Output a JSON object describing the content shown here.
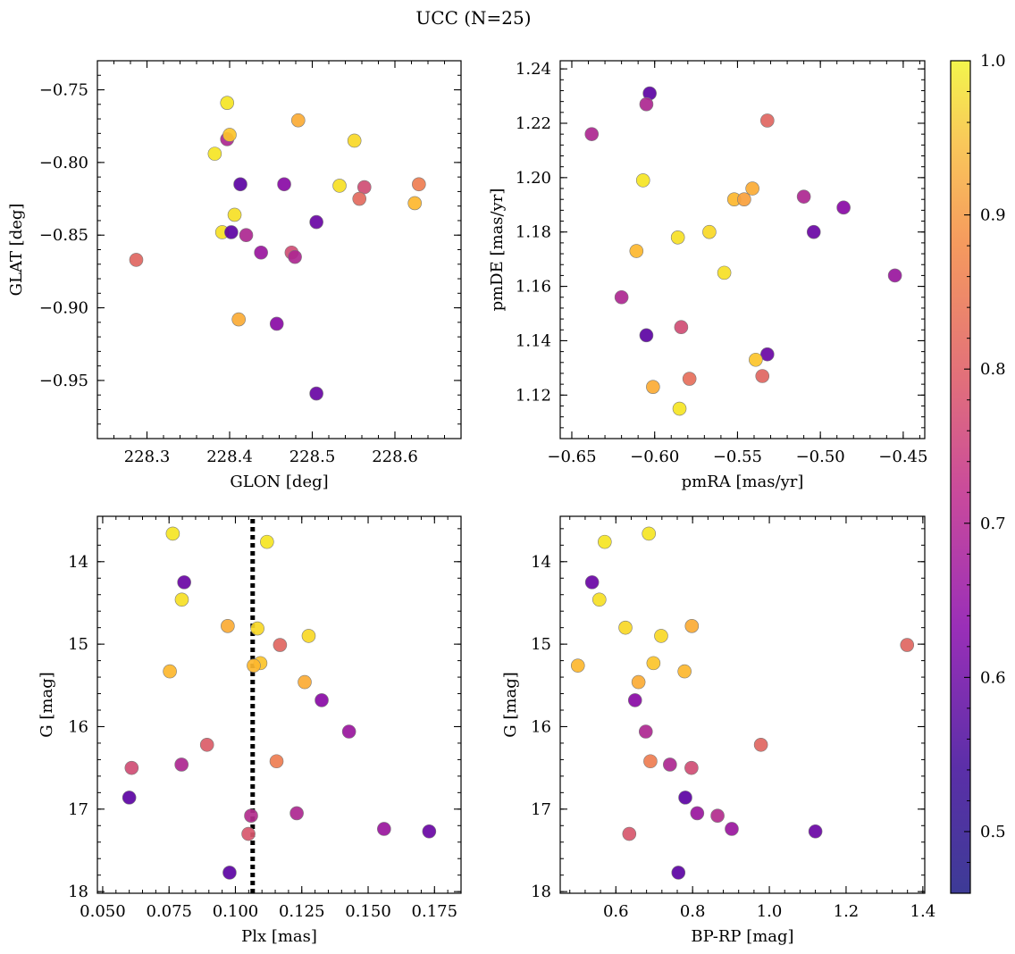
{
  "figure": {
    "title": "UCC (N=25)",
    "colorbar": {
      "range": [
        0.46,
        1.0
      ],
      "ticks": [
        0.5,
        0.6,
        0.7,
        0.8,
        0.9,
        1.0
      ],
      "tick_labels": [
        "0.5",
        "0.6",
        "0.7",
        "0.8",
        "0.9",
        "1.0"
      ],
      "colormap": "plasma"
    }
  },
  "chart_data": [
    {
      "type": "scatter",
      "xlabel": "GLON [deg]",
      "ylabel": "GLAT [deg]",
      "xlim": [
        228.24,
        228.68
      ],
      "ylim": [
        -0.99,
        -0.73
      ],
      "y_inverted": false,
      "xticks": [
        228.3,
        228.4,
        228.5,
        228.6
      ],
      "xtick_labels": [
        "228.3",
        "228.4",
        "228.5",
        "228.6"
      ],
      "yticks": [
        -0.75,
        -0.8,
        -0.85,
        -0.9,
        -0.95
      ],
      "ytick_labels": [
        "−0.75",
        "−0.80",
        "−0.85",
        "−0.90",
        "−0.95"
      ],
      "points": [
        {
          "x": 228.287,
          "y": -0.867,
          "c": 0.75
        },
        {
          "x": 228.397,
          "y": -0.759,
          "c": 0.97
        },
        {
          "x": 228.483,
          "y": -0.771,
          "c": 0.88
        },
        {
          "x": 228.397,
          "y": -0.784,
          "c": 0.62
        },
        {
          "x": 228.4,
          "y": -0.781,
          "c": 0.92
        },
        {
          "x": 228.551,
          "y": -0.785,
          "c": 0.95
        },
        {
          "x": 228.382,
          "y": -0.794,
          "c": 0.97
        },
        {
          "x": 228.413,
          "y": -0.815,
          "c": 0.48
        },
        {
          "x": 228.466,
          "y": -0.815,
          "c": 0.55
        },
        {
          "x": 228.533,
          "y": -0.816,
          "c": 0.96
        },
        {
          "x": 228.563,
          "y": -0.817,
          "c": 0.7
        },
        {
          "x": 228.629,
          "y": -0.815,
          "c": 0.8
        },
        {
          "x": 228.557,
          "y": -0.825,
          "c": 0.76
        },
        {
          "x": 228.624,
          "y": -0.828,
          "c": 0.9
        },
        {
          "x": 228.406,
          "y": -0.836,
          "c": 0.96
        },
        {
          "x": 228.505,
          "y": -0.841,
          "c": 0.5
        },
        {
          "x": 228.391,
          "y": -0.848,
          "c": 0.96
        },
        {
          "x": 228.402,
          "y": -0.848,
          "c": 0.48
        },
        {
          "x": 228.42,
          "y": -0.85,
          "c": 0.62
        },
        {
          "x": 228.438,
          "y": -0.862,
          "c": 0.58
        },
        {
          "x": 228.475,
          "y": -0.862,
          "c": 0.7
        },
        {
          "x": 228.479,
          "y": -0.865,
          "c": 0.62
        },
        {
          "x": 228.411,
          "y": -0.908,
          "c": 0.88
        },
        {
          "x": 228.457,
          "y": -0.911,
          "c": 0.55
        },
        {
          "x": 228.505,
          "y": -0.959,
          "c": 0.5
        }
      ]
    },
    {
      "type": "scatter",
      "xlabel": "pmRA [mas/yr]",
      "ylabel": "pmDE [mas/yr]",
      "xlim": [
        -0.657,
        -0.437
      ],
      "ylim": [
        1.104,
        1.243
      ],
      "y_inverted": false,
      "xticks": [
        -0.65,
        -0.6,
        -0.55,
        -0.5,
        -0.45
      ],
      "xtick_labels": [
        "−0.65",
        "−0.60",
        "−0.55",
        "−0.50",
        "−0.45"
      ],
      "yticks": [
        1.12,
        1.14,
        1.16,
        1.18,
        1.2,
        1.22,
        1.24
      ],
      "ytick_labels": [
        "1.12",
        "1.14",
        "1.16",
        "1.18",
        "1.20",
        "1.22",
        "1.24"
      ],
      "points": [
        {
          "x": -0.603,
          "y": 1.231,
          "c": 0.48
        },
        {
          "x": -0.605,
          "y": 1.227,
          "c": 0.62
        },
        {
          "x": -0.638,
          "y": 1.216,
          "c": 0.62
        },
        {
          "x": -0.532,
          "y": 1.221,
          "c": 0.75
        },
        {
          "x": -0.607,
          "y": 1.199,
          "c": 0.97
        },
        {
          "x": -0.541,
          "y": 1.196,
          "c": 0.88
        },
        {
          "x": -0.552,
          "y": 1.192,
          "c": 0.9
        },
        {
          "x": -0.546,
          "y": 1.192,
          "c": 0.86
        },
        {
          "x": -0.51,
          "y": 1.193,
          "c": 0.62
        },
        {
          "x": -0.486,
          "y": 1.189,
          "c": 0.55
        },
        {
          "x": -0.567,
          "y": 1.18,
          "c": 0.95
        },
        {
          "x": -0.586,
          "y": 1.178,
          "c": 0.96
        },
        {
          "x": -0.504,
          "y": 1.18,
          "c": 0.5
        },
        {
          "x": -0.611,
          "y": 1.173,
          "c": 0.9
        },
        {
          "x": -0.558,
          "y": 1.165,
          "c": 0.96
        },
        {
          "x": -0.455,
          "y": 1.164,
          "c": 0.58
        },
        {
          "x": -0.62,
          "y": 1.156,
          "c": 0.62
        },
        {
          "x": -0.584,
          "y": 1.145,
          "c": 0.7
        },
        {
          "x": -0.605,
          "y": 1.142,
          "c": 0.48
        },
        {
          "x": -0.532,
          "y": 1.135,
          "c": 0.5
        },
        {
          "x": -0.539,
          "y": 1.133,
          "c": 0.92
        },
        {
          "x": -0.535,
          "y": 1.127,
          "c": 0.75
        },
        {
          "x": -0.579,
          "y": 1.126,
          "c": 0.77
        },
        {
          "x": -0.601,
          "y": 1.123,
          "c": 0.88
        },
        {
          "x": -0.585,
          "y": 1.115,
          "c": 0.97
        }
      ]
    },
    {
      "type": "scatter",
      "xlabel": "Plx [mas]",
      "ylabel": "G [mag]",
      "xlim": [
        0.048,
        0.185
      ],
      "ylim": [
        18.02,
        13.45
      ],
      "y_inverted": true,
      "vline": 0.1065,
      "xticks": [
        0.05,
        0.075,
        0.1,
        0.125,
        0.15,
        0.175
      ],
      "xtick_labels": [
        "0.050",
        "0.075",
        "0.100",
        "0.125",
        "0.150",
        "0.175"
      ],
      "yticks": [
        14,
        15,
        16,
        17,
        18
      ],
      "ytick_labels": [
        "14",
        "15",
        "16",
        "17",
        "18"
      ],
      "points": [
        {
          "x": 0.0764,
          "y": 13.66,
          "c": 0.97
        },
        {
          "x": 0.1119,
          "y": 13.76,
          "c": 0.97
        },
        {
          "x": 0.0807,
          "y": 14.25,
          "c": 0.5
        },
        {
          "x": 0.0798,
          "y": 14.46,
          "c": 0.96
        },
        {
          "x": 0.0971,
          "y": 14.78,
          "c": 0.88
        },
        {
          "x": 0.1083,
          "y": 14.81,
          "c": 0.95
        },
        {
          "x": 0.1276,
          "y": 14.9,
          "c": 0.95
        },
        {
          "x": 0.1168,
          "y": 15.01,
          "c": 0.75
        },
        {
          "x": 0.1094,
          "y": 15.23,
          "c": 0.92
        },
        {
          "x": 0.1069,
          "y": 15.26,
          "c": 0.9
        },
        {
          "x": 0.0753,
          "y": 15.33,
          "c": 0.9
        },
        {
          "x": 0.1261,
          "y": 15.46,
          "c": 0.88
        },
        {
          "x": 0.1325,
          "y": 15.68,
          "c": 0.55
        },
        {
          "x": 0.1428,
          "y": 16.06,
          "c": 0.58
        },
        {
          "x": 0.0893,
          "y": 16.22,
          "c": 0.73
        },
        {
          "x": 0.1155,
          "y": 16.42,
          "c": 0.8
        },
        {
          "x": 0.0797,
          "y": 16.46,
          "c": 0.62
        },
        {
          "x": 0.0609,
          "y": 16.5,
          "c": 0.7
        },
        {
          "x": 0.06,
          "y": 16.86,
          "c": 0.48
        },
        {
          "x": 0.1231,
          "y": 17.05,
          "c": 0.62
        },
        {
          "x": 0.1059,
          "y": 17.08,
          "c": 0.63
        },
        {
          "x": 0.156,
          "y": 17.24,
          "c": 0.58
        },
        {
          "x": 0.173,
          "y": 17.27,
          "c": 0.5
        },
        {
          "x": 0.1049,
          "y": 17.3,
          "c": 0.72
        },
        {
          "x": 0.0978,
          "y": 17.77,
          "c": 0.48
        }
      ]
    },
    {
      "type": "scatter",
      "xlabel": "BP-RP [mag]",
      "ylabel": "G [mag]",
      "xlim": [
        0.455,
        1.405
      ],
      "ylim": [
        18.02,
        13.45
      ],
      "y_inverted": true,
      "xticks": [
        0.6,
        0.8,
        1.0,
        1.2,
        1.4
      ],
      "xtick_labels": [
        "0.6",
        "0.8",
        "1.0",
        "1.2",
        "1.4"
      ],
      "yticks": [
        14,
        15,
        16,
        17,
        18
      ],
      "ytick_labels": [
        "14",
        "15",
        "16",
        "17",
        "18"
      ],
      "points": [
        {
          "x": 0.686,
          "y": 13.66,
          "c": 0.97
        },
        {
          "x": 0.571,
          "y": 13.76,
          "c": 0.97
        },
        {
          "x": 0.538,
          "y": 14.25,
          "c": 0.5
        },
        {
          "x": 0.557,
          "y": 14.46,
          "c": 0.96
        },
        {
          "x": 0.625,
          "y": 14.8,
          "c": 0.95
        },
        {
          "x": 0.798,
          "y": 14.78,
          "c": 0.88
        },
        {
          "x": 0.718,
          "y": 14.9,
          "c": 0.95
        },
        {
          "x": 1.359,
          "y": 15.01,
          "c": 0.75
        },
        {
          "x": 0.698,
          "y": 15.23,
          "c": 0.92
        },
        {
          "x": 0.501,
          "y": 15.26,
          "c": 0.9
        },
        {
          "x": 0.779,
          "y": 15.33,
          "c": 0.9
        },
        {
          "x": 0.659,
          "y": 15.46,
          "c": 0.88
        },
        {
          "x": 0.65,
          "y": 15.68,
          "c": 0.55
        },
        {
          "x": 0.678,
          "y": 16.06,
          "c": 0.62
        },
        {
          "x": 0.978,
          "y": 16.22,
          "c": 0.75
        },
        {
          "x": 0.69,
          "y": 16.42,
          "c": 0.8
        },
        {
          "x": 0.741,
          "y": 16.46,
          "c": 0.62
        },
        {
          "x": 0.797,
          "y": 16.5,
          "c": 0.7
        },
        {
          "x": 0.781,
          "y": 16.86,
          "c": 0.48
        },
        {
          "x": 0.812,
          "y": 17.05,
          "c": 0.58
        },
        {
          "x": 0.865,
          "y": 17.08,
          "c": 0.63
        },
        {
          "x": 0.902,
          "y": 17.24,
          "c": 0.58
        },
        {
          "x": 1.12,
          "y": 17.27,
          "c": 0.5
        },
        {
          "x": 0.635,
          "y": 17.3,
          "c": 0.72
        },
        {
          "x": 0.763,
          "y": 17.77,
          "c": 0.48
        }
      ]
    }
  ]
}
